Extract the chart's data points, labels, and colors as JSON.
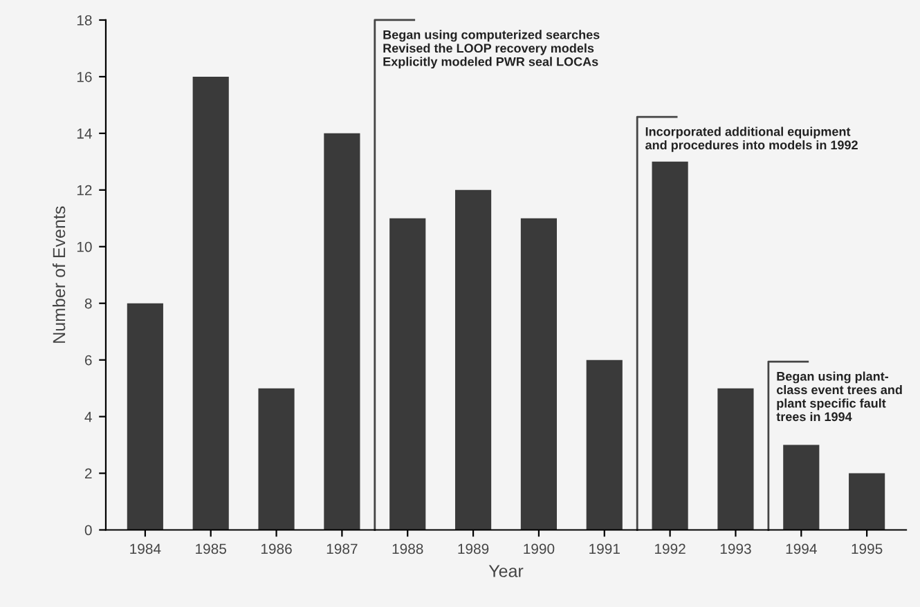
{
  "chart_data": {
    "type": "bar",
    "xlabel": "Year",
    "ylabel": "Number of Events",
    "categories": [
      "1984",
      "1985",
      "1986",
      "1987",
      "1988",
      "1989",
      "1990",
      "1991",
      "1992",
      "1993",
      "1994",
      "1995"
    ],
    "values": [
      8,
      16,
      5,
      14,
      11,
      12,
      11,
      6,
      13,
      5,
      3,
      2
    ],
    "color": "#3a3a3a",
    "ylim": [
      0,
      18
    ],
    "yticks": [
      0,
      2,
      4,
      6,
      8,
      10,
      12,
      14,
      16,
      18
    ],
    "grid": false,
    "annotations": [
      "Began using computerized searches\nRevised the LOOP recovery models\nExplicitly modeled PWR seal LOCAs",
      "Incorporated additional equipment\nand procedures into models in 1992",
      "Began using plant-\nclass event trees and\nplant specific fault\ntrees in 1994"
    ]
  }
}
